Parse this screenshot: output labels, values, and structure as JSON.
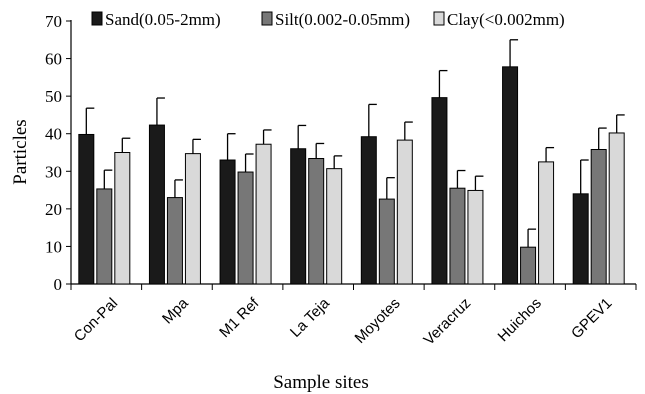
{
  "chart_data": {
    "type": "bar",
    "title": "",
    "xlabel": "Sample sites",
    "ylabel": "Particles",
    "ylim": [
      0,
      70
    ],
    "yticks": [
      0,
      10,
      20,
      30,
      40,
      50,
      60,
      70
    ],
    "grid": false,
    "legend_position": "top",
    "categories": [
      "Con-Pal",
      "Mpa",
      "M1 Ref",
      "La Teja",
      "Moyotes",
      "Veracruz",
      "Huichos",
      "GPEV1"
    ],
    "series": [
      {
        "name": "Sand(0.05-2mm)",
        "color": "#1a1a1a",
        "values": [
          39.8,
          42.3,
          33.0,
          36.0,
          39.2,
          49.6,
          57.8,
          24.0
        ],
        "error": [
          7.0,
          7.2,
          7.0,
          6.2,
          8.6,
          7.2,
          7.2,
          9.0
        ]
      },
      {
        "name": "Silt(0.002-0.05mm)",
        "color": "#777777",
        "values": [
          25.3,
          23.0,
          29.8,
          33.4,
          22.6,
          25.5,
          9.8,
          35.8
        ],
        "error": [
          5.0,
          4.7,
          4.8,
          4.0,
          5.7,
          4.7,
          4.8,
          5.7
        ]
      },
      {
        "name": "Clay(<0.002mm)",
        "color": "#d9d9d9",
        "values": [
          35.0,
          34.7,
          37.2,
          30.7,
          38.3,
          24.9,
          32.5,
          40.2
        ],
        "error": [
          3.8,
          3.8,
          3.8,
          3.4,
          4.8,
          3.8,
          3.8,
          4.8
        ]
      }
    ]
  }
}
